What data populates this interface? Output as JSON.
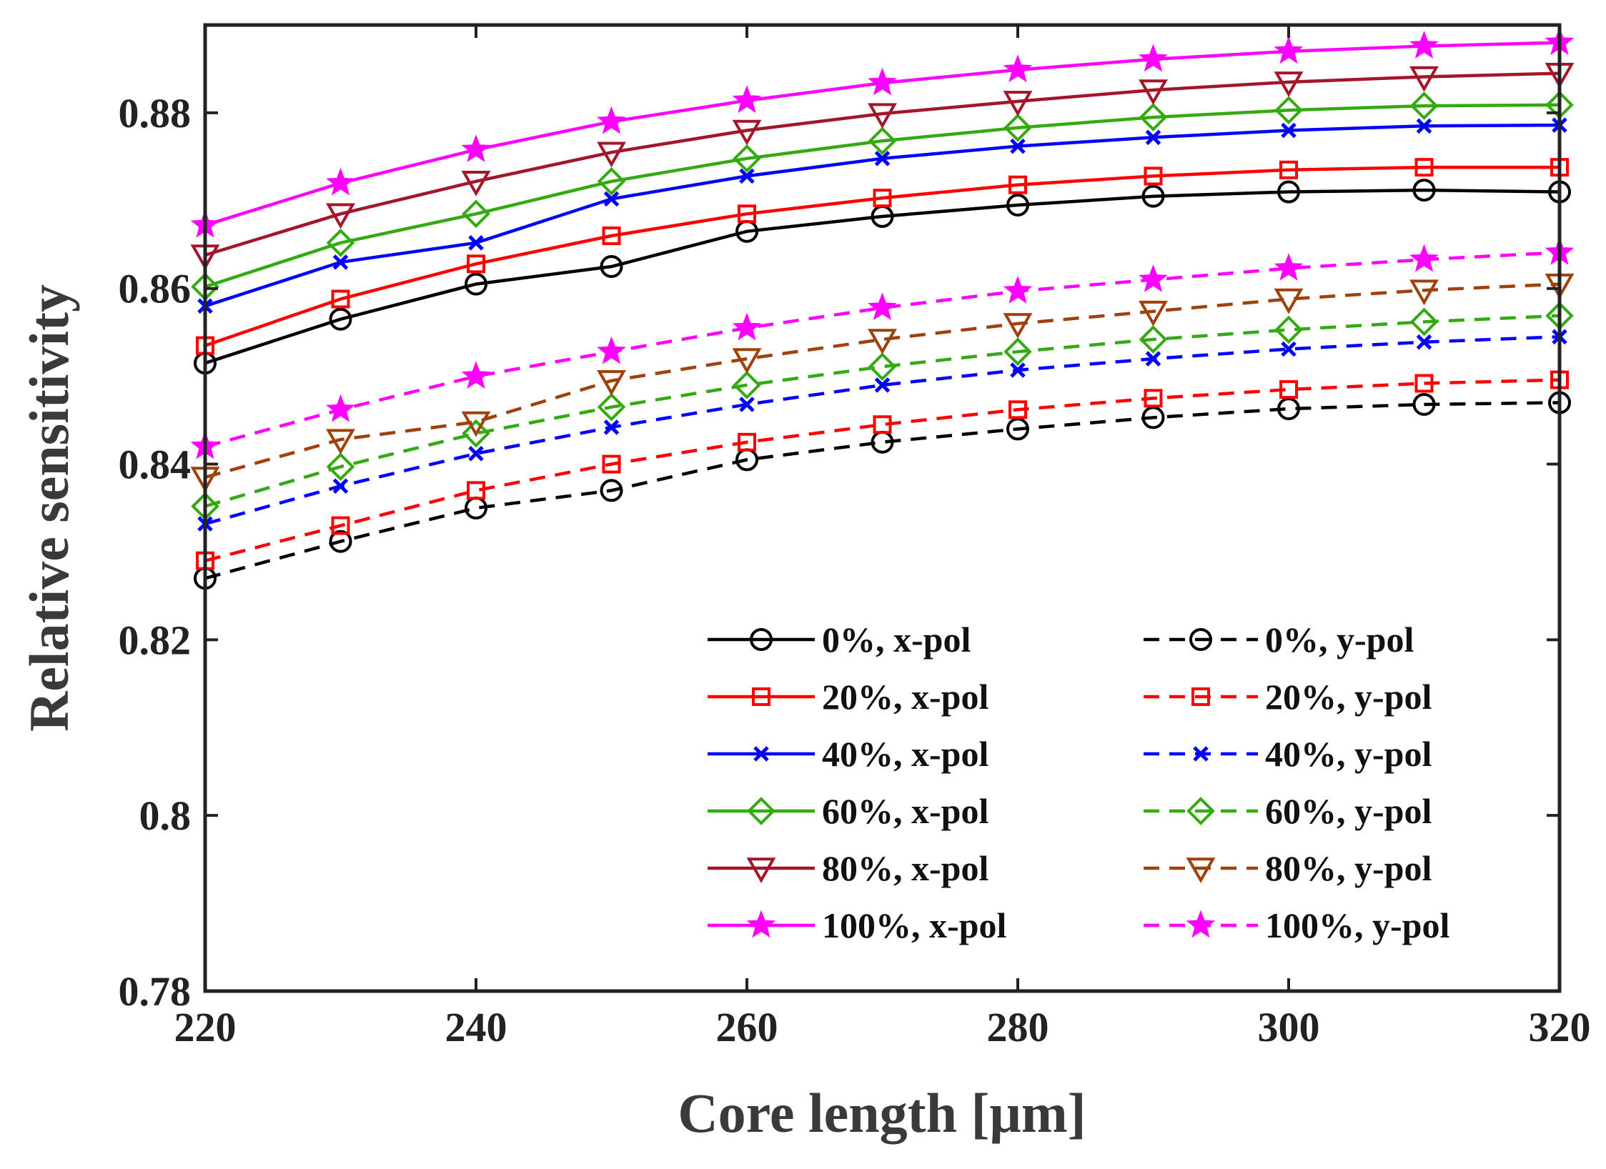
{
  "chart_data": {
    "type": "line",
    "xlabel": "Core length [μm]",
    "ylabel": "Relative sensitivity",
    "xlim": [
      220,
      320
    ],
    "ylim": [
      0.78,
      0.89
    ],
    "xticks": [
      220,
      240,
      260,
      280,
      300,
      320
    ],
    "xtick_labels": [
      "220",
      "240",
      "260",
      "280",
      "300",
      "320"
    ],
    "yticks": [
      0.78,
      0.8,
      0.82,
      0.84,
      0.86,
      0.88
    ],
    "ytick_labels": [
      "0.78",
      "0.8",
      "0.82",
      "0.84",
      "0.86",
      "0.88"
    ],
    "grid": false,
    "legend_position": "bottom-right",
    "x": [
      220,
      230,
      240,
      250,
      260,
      270,
      280,
      290,
      300,
      310,
      320
    ],
    "series": [
      {
        "name": "0%, x-pol",
        "label": "0%, x-pol",
        "color": "#000000",
        "dash": "solid",
        "marker": "circle",
        "values": [
          0.8515,
          0.8565,
          0.8605,
          0.8625,
          0.8665,
          0.8682,
          0.8695,
          0.8705,
          0.871,
          0.8712,
          0.871
        ]
      },
      {
        "name": "20%, x-pol",
        "label": "20%, x-pol",
        "color": "#ff0000",
        "dash": "solid",
        "marker": "square",
        "values": [
          0.8535,
          0.8588,
          0.8628,
          0.866,
          0.8685,
          0.8703,
          0.8718,
          0.8728,
          0.8735,
          0.8738,
          0.8738
        ]
      },
      {
        "name": "40%, x-pol",
        "label": "40%, x-pol",
        "color": "#0000ff",
        "dash": "solid",
        "marker": "x",
        "values": [
          0.858,
          0.863,
          0.8652,
          0.8702,
          0.8728,
          0.8748,
          0.8762,
          0.8772,
          0.878,
          0.8785,
          0.8786
        ]
      },
      {
        "name": "60%, x-pol",
        "label": "60%, x-pol",
        "color": "#33aa11",
        "dash": "solid",
        "marker": "diamond",
        "values": [
          0.8602,
          0.8652,
          0.8685,
          0.8722,
          0.8748,
          0.8768,
          0.8783,
          0.8795,
          0.8803,
          0.8808,
          0.8809
        ]
      },
      {
        "name": "80%, x-pol",
        "label": "80%, x-pol",
        "color": "#a3162a",
        "dash": "solid",
        "marker": "triangle-down",
        "values": [
          0.8638,
          0.8685,
          0.8722,
          0.8755,
          0.878,
          0.8799,
          0.8813,
          0.8826,
          0.8835,
          0.8841,
          0.8845
        ]
      },
      {
        "name": "100%, x-pol",
        "label": "100%, x-pol",
        "color": "#ff00ff",
        "dash": "solid",
        "marker": "star",
        "values": [
          0.8672,
          0.872,
          0.8758,
          0.879,
          0.8814,
          0.8834,
          0.8849,
          0.8861,
          0.887,
          0.8876,
          0.888
        ]
      },
      {
        "name": "0%, y-pol",
        "label": "0%, y-pol",
        "color": "#000000",
        "dash": "dashed",
        "marker": "circle",
        "values": [
          0.827,
          0.8312,
          0.835,
          0.837,
          0.8405,
          0.8425,
          0.844,
          0.8453,
          0.8463,
          0.8468,
          0.847
        ]
      },
      {
        "name": "20%, y-pol",
        "label": "20%, y-pol",
        "color": "#ff0000",
        "dash": "dashed",
        "marker": "square",
        "values": [
          0.829,
          0.833,
          0.837,
          0.84,
          0.8425,
          0.8445,
          0.8462,
          0.8475,
          0.8485,
          0.8492,
          0.8496
        ]
      },
      {
        "name": "40%, y-pol",
        "label": "40%, y-pol",
        "color": "#0000ff",
        "dash": "dashed",
        "marker": "x",
        "values": [
          0.8332,
          0.8375,
          0.8412,
          0.8442,
          0.8468,
          0.849,
          0.8507,
          0.852,
          0.8531,
          0.8539,
          0.8545
        ]
      },
      {
        "name": "60%, y-pol",
        "label": "60%, y-pol",
        "color": "#33aa11",
        "dash": "dashed",
        "marker": "diamond",
        "values": [
          0.8352,
          0.8397,
          0.8435,
          0.8465,
          0.849,
          0.8511,
          0.8528,
          0.8542,
          0.8553,
          0.8562,
          0.8569
        ]
      },
      {
        "name": "80%, y-pol",
        "label": "80%, y-pol",
        "color": "#a0400a",
        "dash": "dashed",
        "marker": "triangle-down",
        "values": [
          0.8385,
          0.8428,
          0.8448,
          0.8495,
          0.852,
          0.8542,
          0.856,
          0.8574,
          0.8588,
          0.8598,
          0.8605
        ]
      },
      {
        "name": "100%, y-pol",
        "label": "100%, y-pol",
        "color": "#ff00ff",
        "dash": "dashed",
        "marker": "star",
        "values": [
          0.842,
          0.8462,
          0.85,
          0.8528,
          0.8555,
          0.8578,
          0.8597,
          0.861,
          0.8623,
          0.8633,
          0.8641
        ]
      }
    ]
  }
}
